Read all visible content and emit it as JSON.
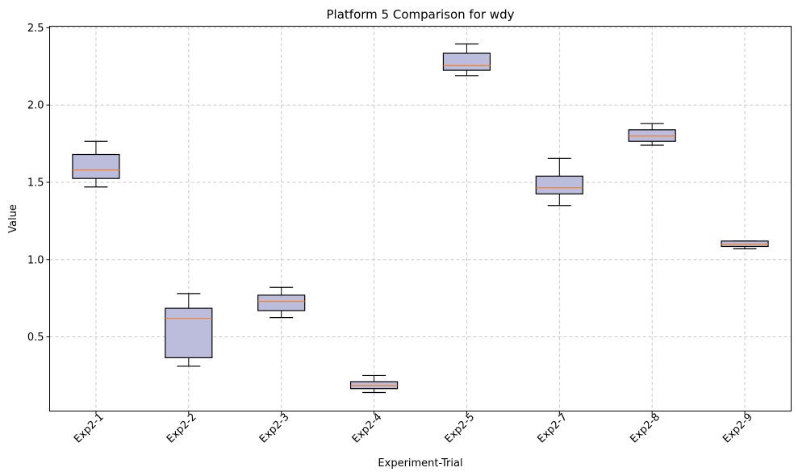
{
  "chart_data": {
    "type": "box",
    "title": "Platform 5 Comparison for wdy",
    "xlabel": "Experiment-Trial",
    "ylabel": "Value",
    "ylim": [
      0.02,
      2.51
    ],
    "yticks": [
      "0.5",
      "1.0",
      "1.5",
      "2.0",
      "2.5"
    ],
    "grid": true,
    "box_color": "#bcbddc",
    "median_color": "#f58025",
    "series": [
      {
        "name": "Exp2-1",
        "whisker_low": 1.47,
        "q1": 1.525,
        "median": 1.58,
        "q3": 1.68,
        "whisker_high": 1.765
      },
      {
        "name": "Exp2-2",
        "whisker_low": 0.31,
        "q1": 0.365,
        "median": 0.62,
        "q3": 0.685,
        "whisker_high": 0.78
      },
      {
        "name": "Exp2-3",
        "whisker_low": 0.625,
        "q1": 0.67,
        "median": 0.73,
        "q3": 0.77,
        "whisker_high": 0.82
      },
      {
        "name": "Exp2-4",
        "whisker_low": 0.14,
        "q1": 0.165,
        "median": 0.185,
        "q3": 0.21,
        "whisker_high": 0.25
      },
      {
        "name": "Exp2-5",
        "whisker_low": 2.19,
        "q1": 2.225,
        "median": 2.255,
        "q3": 2.335,
        "whisker_high": 2.395
      },
      {
        "name": "Exp2-7",
        "whisker_low": 1.35,
        "q1": 1.425,
        "median": 1.465,
        "q3": 1.54,
        "whisker_high": 1.655
      },
      {
        "name": "Exp2-8",
        "whisker_low": 1.74,
        "q1": 1.765,
        "median": 1.8,
        "q3": 1.84,
        "whisker_high": 1.88
      },
      {
        "name": "Exp2-9",
        "whisker_low": 1.07,
        "q1": 1.085,
        "median": 1.1,
        "q3": 1.12,
        "whisker_high": 1.12
      }
    ]
  }
}
